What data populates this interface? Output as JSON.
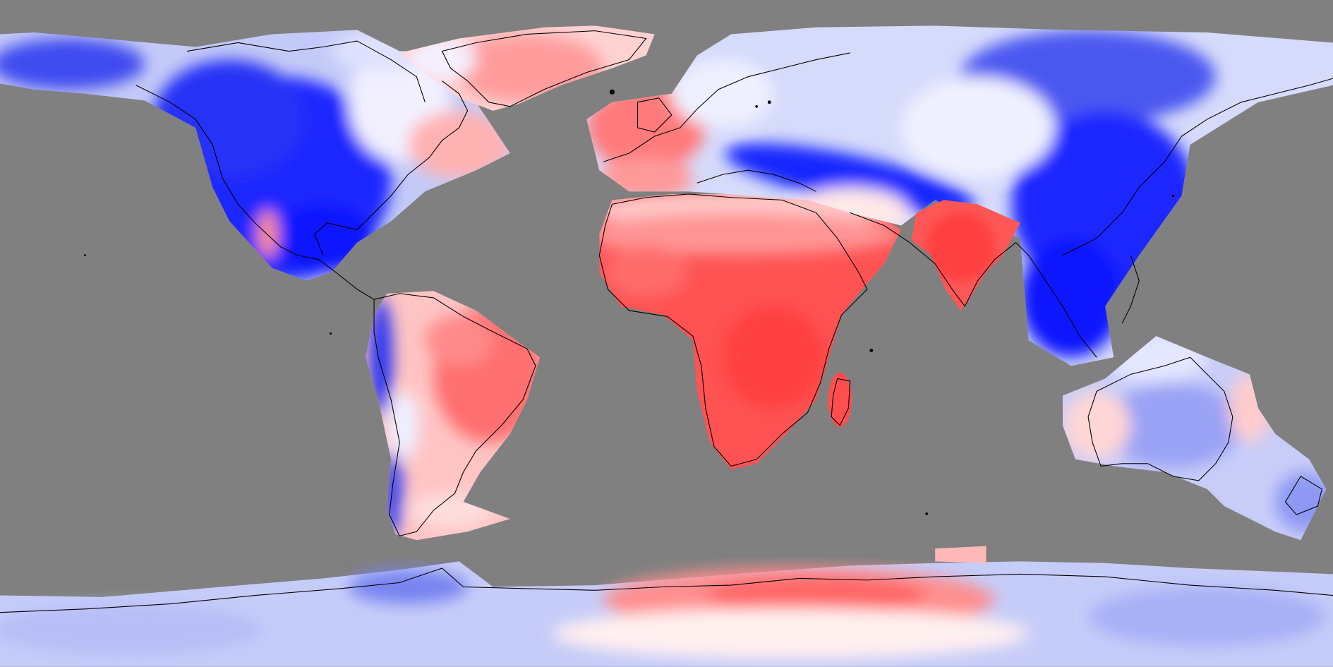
{
  "map": {
    "projection": "equirectangular",
    "ocean_color": "#808080",
    "coastline_color": "#000000",
    "palette": {
      "strong_negative": "#0000ff",
      "negative": "#4a55ee",
      "weak_negative": "#b4bcf6",
      "neutral": "#f4f4ff",
      "weak_positive": "#ffc8c8",
      "positive": "#ff7c7c",
      "strong_positive": "#ff4a4a"
    }
  }
}
